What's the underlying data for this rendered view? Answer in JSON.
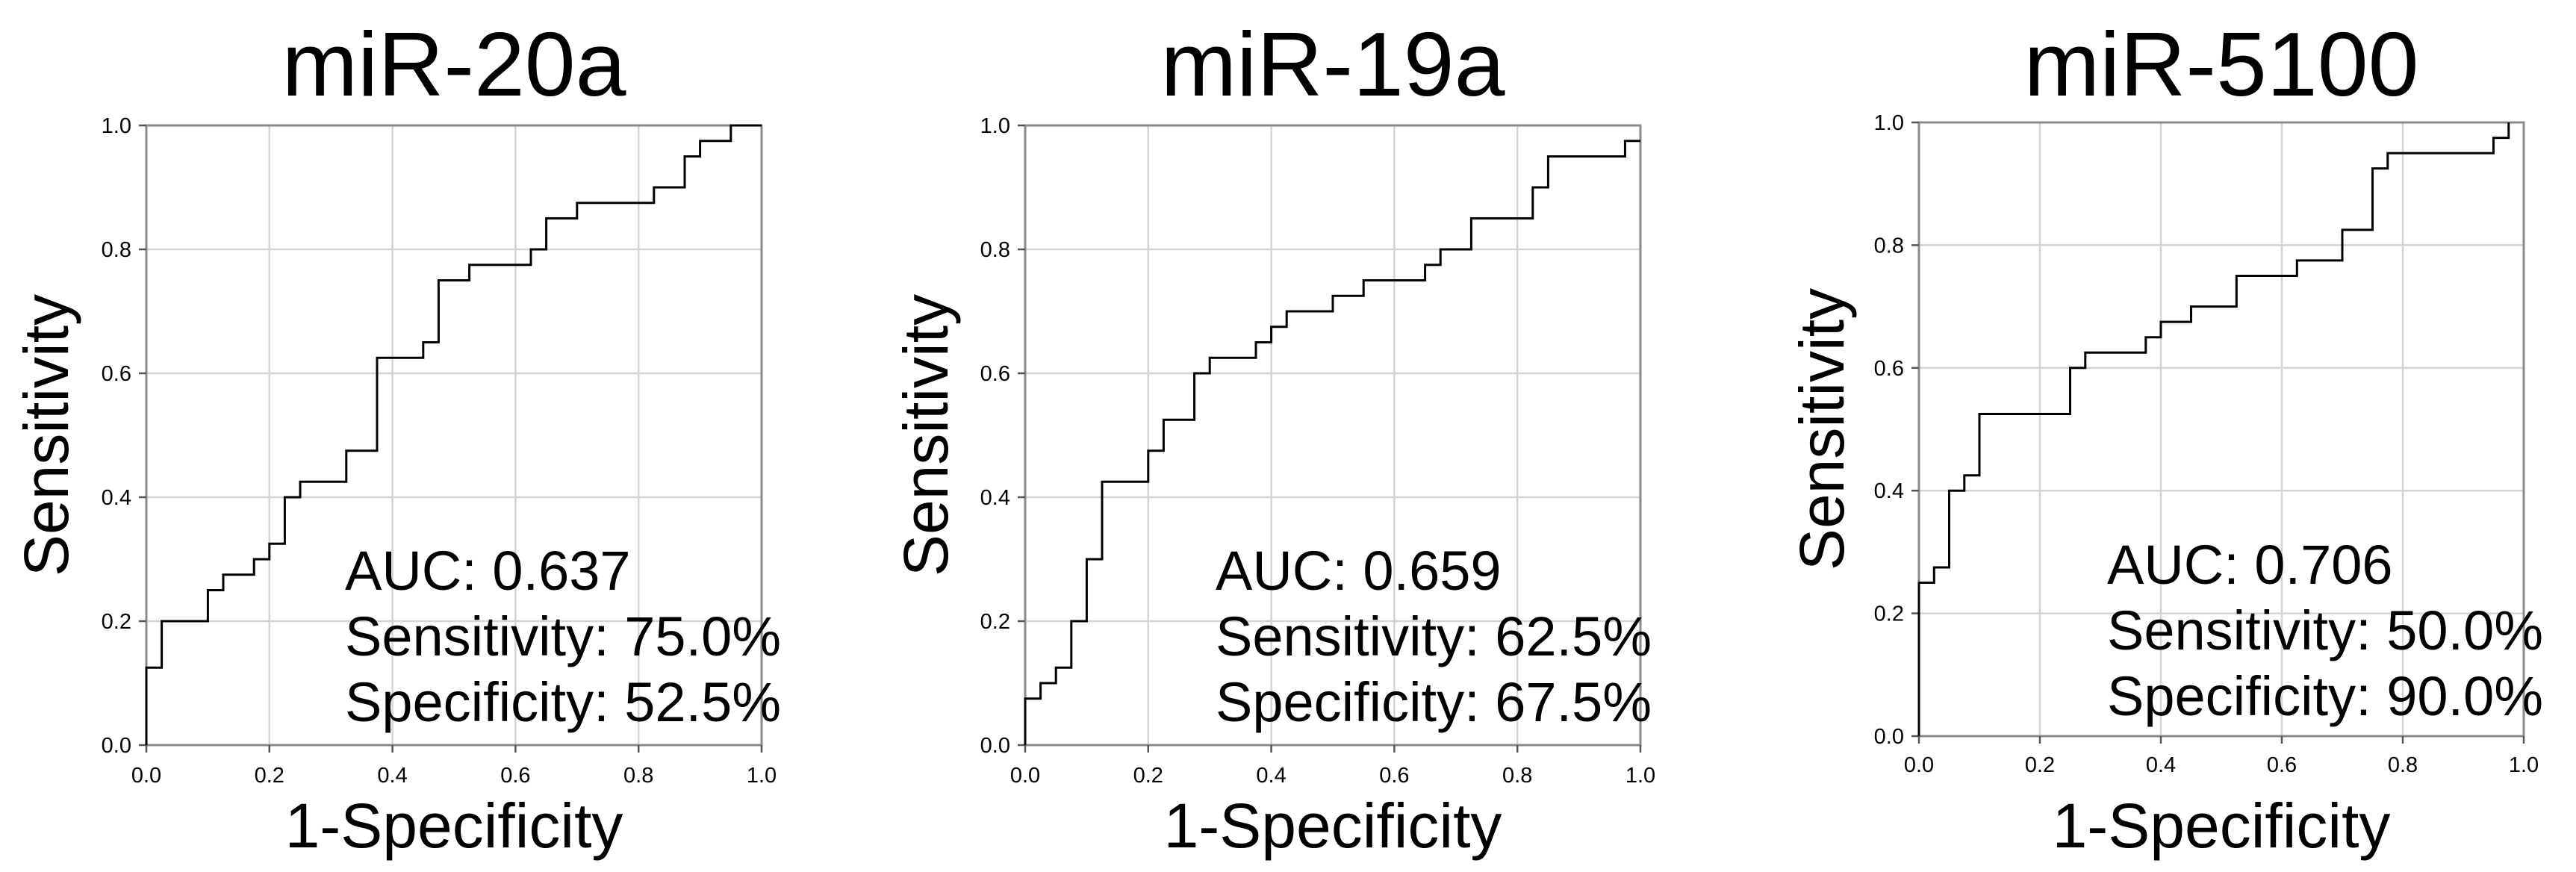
{
  "chart_data": [
    {
      "type": "line",
      "title": "miR-20a",
      "xlabel": "1-Specificity",
      "ylabel": "Sensitivity",
      "xlim": [
        0,
        1
      ],
      "ylim": [
        0,
        1
      ],
      "x_ticks": [
        "0.0",
        "0.2",
        "0.4",
        "0.6",
        "0.8",
        "1.0"
      ],
      "y_ticks": [
        "0.0",
        "0.2",
        "0.4",
        "0.6",
        "0.8",
        "1.0"
      ],
      "grid": true,
      "series": [
        {
          "x": [
            0,
            0,
            0.025,
            0.025,
            0.1,
            0.1,
            0.125,
            0.125,
            0.175,
            0.175,
            0.2,
            0.2,
            0.225,
            0.225,
            0.25,
            0.25,
            0.325,
            0.325,
            0.375,
            0.375,
            0.45,
            0.45,
            0.475,
            0.475,
            0.525,
            0.525,
            0.625,
            0.625,
            0.65,
            0.65,
            0.7,
            0.7,
            0.825,
            0.825,
            0.875,
            0.875,
            0.9,
            0.9,
            0.95,
            0.95,
            1
          ],
          "y": [
            0,
            0.125,
            0.125,
            0.2,
            0.2,
            0.25,
            0.25,
            0.275,
            0.275,
            0.3,
            0.3,
            0.325,
            0.325,
            0.4,
            0.4,
            0.425,
            0.425,
            0.475,
            0.475,
            0.625,
            0.625,
            0.65,
            0.65,
            0.75,
            0.75,
            0.775,
            0.775,
            0.8,
            0.8,
            0.85,
            0.85,
            0.875,
            0.875,
            0.9,
            0.9,
            0.95,
            0.95,
            0.975,
            0.975,
            1,
            1
          ]
        }
      ],
      "annotations": [
        "AUC: 0.637",
        "Sensitivity: 75.0%",
        "Specificity: 52.5%"
      ]
    },
    {
      "type": "line",
      "title": "miR-19a",
      "xlabel": "1-Specificity",
      "ylabel": "Sensitivity",
      "xlim": [
        0,
        1
      ],
      "ylim": [
        0,
        1
      ],
      "x_ticks": [
        "0.0",
        "0.2",
        "0.4",
        "0.6",
        "0.8",
        "1.0"
      ],
      "y_ticks": [
        "0.0",
        "0.2",
        "0.4",
        "0.6",
        "0.8",
        "1.0"
      ],
      "grid": true,
      "series": [
        {
          "x": [
            0,
            0,
            0.025,
            0.025,
            0.05,
            0.05,
            0.075,
            0.075,
            0.1,
            0.1,
            0.125,
            0.125,
            0.2,
            0.2,
            0.225,
            0.225,
            0.275,
            0.275,
            0.3,
            0.3,
            0.375,
            0.375,
            0.4,
            0.4,
            0.425,
            0.425,
            0.5,
            0.5,
            0.55,
            0.55,
            0.65,
            0.65,
            0.675,
            0.675,
            0.725,
            0.725,
            0.825,
            0.825,
            0.85,
            0.85,
            0.975,
            0.975,
            1
          ],
          "y": [
            0,
            0.075,
            0.075,
            0.1,
            0.1,
            0.125,
            0.125,
            0.2,
            0.2,
            0.3,
            0.3,
            0.425,
            0.425,
            0.475,
            0.475,
            0.525,
            0.525,
            0.6,
            0.6,
            0.625,
            0.625,
            0.65,
            0.65,
            0.675,
            0.675,
            0.7,
            0.7,
            0.725,
            0.725,
            0.75,
            0.75,
            0.775,
            0.775,
            0.8,
            0.8,
            0.85,
            0.85,
            0.9,
            0.9,
            0.95,
            0.95,
            0.975,
            0.975
          ]
        }
      ],
      "annotations": [
        "AUC: 0.659",
        "Sensitivity: 62.5%",
        "Specificity: 67.5%"
      ]
    },
    {
      "type": "line",
      "title": "miR-5100",
      "xlabel": "1-Specificity",
      "ylabel": "Sensitivity",
      "xlim": [
        0,
        1
      ],
      "ylim": [
        0,
        1
      ],
      "x_ticks": [
        "0.0",
        "0.2",
        "0.4",
        "0.6",
        "0.8",
        "1.0"
      ],
      "y_ticks": [
        "0.0",
        "0.2",
        "0.4",
        "0.6",
        "0.8",
        "1.0"
      ],
      "grid": true,
      "series": [
        {
          "x": [
            0,
            0,
            0.025,
            0.025,
            0.05,
            0.05,
            0.075,
            0.075,
            0.1,
            0.1,
            0.25,
            0.25,
            0.275,
            0.275,
            0.375,
            0.375,
            0.4,
            0.4,
            0.45,
            0.45,
            0.525,
            0.525,
            0.625,
            0.625,
            0.7,
            0.7,
            0.75,
            0.75,
            0.775,
            0.775,
            0.95,
            0.95,
            0.975,
            0.975
          ],
          "y": [
            0,
            0.25,
            0.25,
            0.275,
            0.275,
            0.4,
            0.4,
            0.425,
            0.425,
            0.525,
            0.525,
            0.6,
            0.6,
            0.625,
            0.625,
            0.65,
            0.65,
            0.675,
            0.675,
            0.7,
            0.7,
            0.75,
            0.75,
            0.775,
            0.775,
            0.825,
            0.825,
            0.925,
            0.925,
            0.95,
            0.95,
            0.975,
            0.975,
            1
          ]
        }
      ],
      "annotations": [
        "AUC: 0.706",
        "Sensitivity: 50.0%",
        "Specificity: 90.0%"
      ]
    }
  ]
}
